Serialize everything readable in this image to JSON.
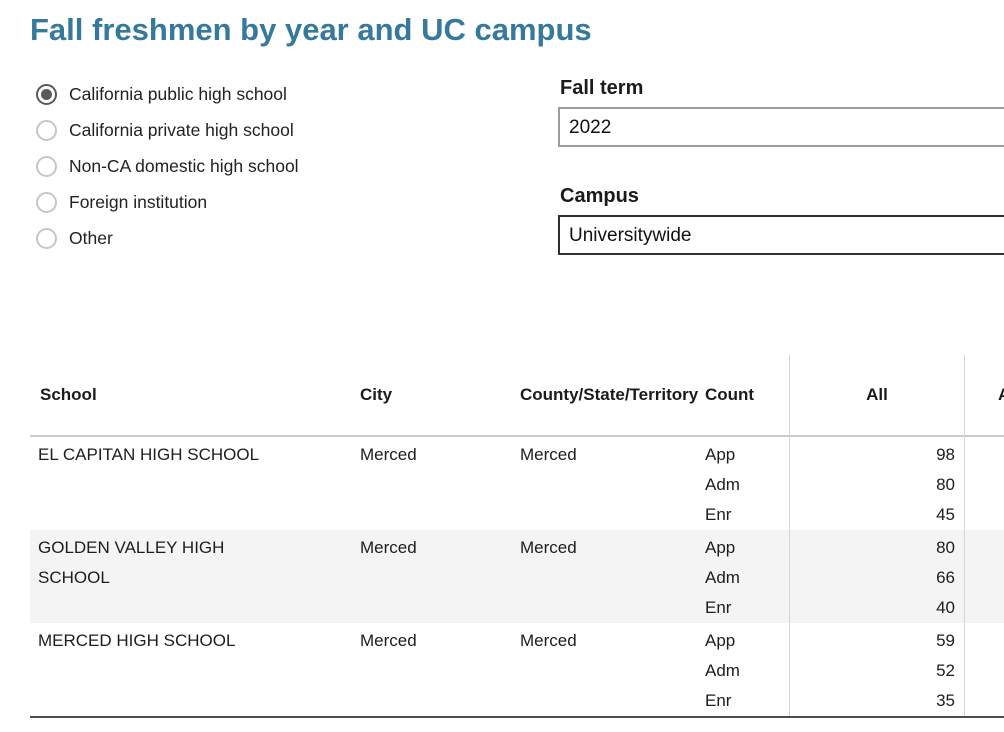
{
  "page": {
    "title": "Fall freshmen by year and UC campus",
    "accent_color": "#35799c",
    "stripe_color": "#f4f4f4"
  },
  "filters": {
    "school_type": {
      "options": [
        {
          "label": "California public high school",
          "selected": true
        },
        {
          "label": "California private high school",
          "selected": false
        },
        {
          "label": "Non-CA domestic high school",
          "selected": false
        },
        {
          "label": "Foreign institution",
          "selected": false
        },
        {
          "label": "Other",
          "selected": false
        }
      ]
    },
    "fall_term": {
      "label": "Fall term",
      "value": "2022"
    },
    "campus": {
      "label": "Campus",
      "value": "Universitywide"
    }
  },
  "table": {
    "columns": {
      "school": "School",
      "city": "City",
      "county": "County/State/Territory",
      "count": "Count",
      "all": "All",
      "next_partial": "A"
    },
    "count_labels": [
      "App",
      "Adm",
      "Enr"
    ],
    "rows": [
      {
        "school": "EL CAPITAN HIGH SCHOOL",
        "city": "Merced",
        "county": "Merced",
        "values": [
          98,
          80,
          45
        ]
      },
      {
        "school": "GOLDEN VALLEY HIGH SCHOOL",
        "city": "Merced",
        "county": "Merced",
        "values": [
          80,
          66,
          40
        ]
      },
      {
        "school": "MERCED HIGH SCHOOL",
        "city": "Merced",
        "county": "Merced",
        "values": [
          59,
          52,
          35
        ]
      }
    ]
  }
}
